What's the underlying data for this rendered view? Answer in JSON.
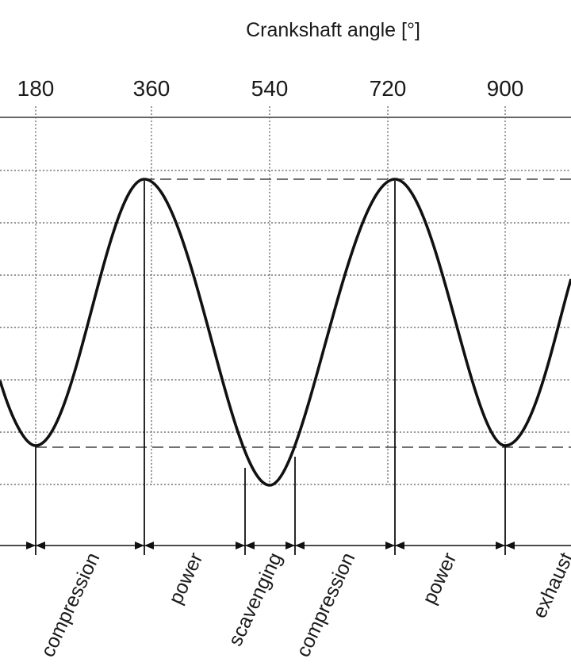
{
  "axis": {
    "title": "Crankshaft angle [°]",
    "ticks": [
      {
        "value": 180,
        "label": "180"
      },
      {
        "value": 360,
        "label": "360"
      },
      {
        "value": 540,
        "label": "540"
      },
      {
        "value": 720,
        "label": "720"
      },
      {
        "value": 900,
        "label": "900"
      }
    ]
  },
  "phases": [
    {
      "id": "compression-1",
      "label": "compression"
    },
    {
      "id": "power-1",
      "label": "power"
    },
    {
      "id": "scavenging",
      "label": "scavenging"
    },
    {
      "id": "compression-2",
      "label": "compression"
    },
    {
      "id": "power-2",
      "label": "power"
    },
    {
      "id": "exhaust",
      "label": "exhaust"
    }
  ]
}
